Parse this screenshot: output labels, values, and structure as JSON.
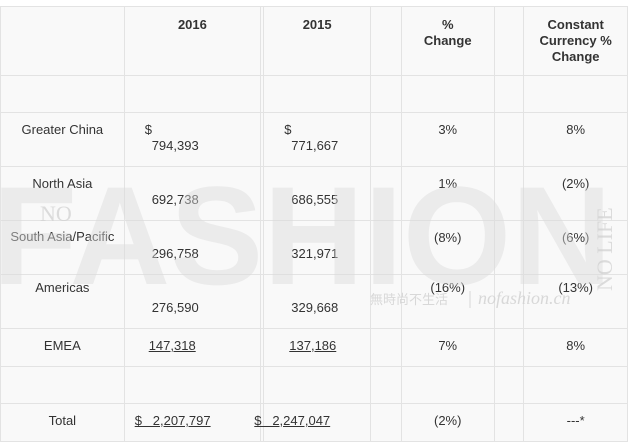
{
  "header": {
    "col_2016": "2016",
    "col_2015": "2015",
    "col_pct": "% Change",
    "col_cc": "Constant Currency % Change"
  },
  "rows": [
    {
      "label": "Greater China",
      "v2016_dollar": "$",
      "v2016": "794,393",
      "v2015_dollar": "$",
      "v2015": "771,667",
      "pct": "3%",
      "cc": "8%"
    },
    {
      "label": "North Asia",
      "v2016": "692,738",
      "v2015": "686,555",
      "pct": "1%",
      "cc": "(2%)"
    },
    {
      "label": "South Asia/Pacific",
      "v2016": "296,758",
      "v2015": "321,971",
      "pct": "(8%)",
      "cc": "(6%)"
    },
    {
      "label": "Americas",
      "v2016": "276,590",
      "v2015": "329,668",
      "pct": "(16%)",
      "cc": "(13%)"
    },
    {
      "label": "EMEA",
      "v2016": "147,318",
      "v2015": "137,186",
      "pct": "7%",
      "cc": "8%"
    }
  ],
  "total": {
    "label": "Total",
    "v2016": "$   2,207,797",
    "v2015": "$   2,247,047",
    "pct": "(2%)",
    "cc": "---*"
  },
  "watermark": {
    "big": "FASHION",
    "small_left": "NO",
    "small_right": "NO LIFE",
    "cn": "無時尚不生活",
    "site": "nofashion.cn"
  }
}
